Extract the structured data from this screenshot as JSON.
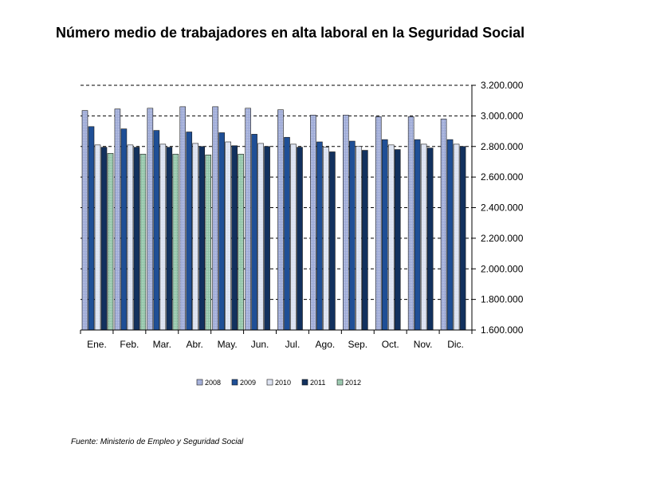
{
  "chart_data": {
    "type": "bar",
    "title": "Número medio de trabajadores en alta laboral en la Seguridad Social",
    "categories": [
      "Ene.",
      "Feb.",
      "Mar.",
      "Abr.",
      "May.",
      "Jun.",
      "Jul.",
      "Ago.",
      "Sep.",
      "Oct.",
      "Nov.",
      "Dic."
    ],
    "series": [
      {
        "name": "2008",
        "color": "#9ba8d6",
        "pattern": "dots",
        "values": [
          3035000,
          3045000,
          3050000,
          3060000,
          3060000,
          3050000,
          3040000,
          3005000,
          3005000,
          2995000,
          2995000,
          2980000
        ]
      },
      {
        "name": "2009",
        "color": "#1f4f96",
        "pattern": "solid",
        "values": [
          2930000,
          2915000,
          2905000,
          2895000,
          2890000,
          2880000,
          2860000,
          2830000,
          2835000,
          2845000,
          2845000,
          2845000
        ]
      },
      {
        "name": "2010",
        "color": "#d9e0f0",
        "pattern": "dots",
        "values": [
          2810000,
          2810000,
          2815000,
          2820000,
          2830000,
          2820000,
          2815000,
          2795000,
          2800000,
          2810000,
          2815000,
          2815000
        ]
      },
      {
        "name": "2011",
        "color": "#12315e",
        "pattern": "solid",
        "values": [
          2795000,
          2795000,
          2795000,
          2800000,
          2805000,
          2800000,
          2795000,
          2765000,
          2775000,
          2780000,
          2790000,
          2800000
        ]
      },
      {
        "name": "2012",
        "color": "#8fc3a6",
        "pattern": "dots",
        "values": [
          2755000,
          2750000,
          2750000,
          2745000,
          2750000,
          null,
          null,
          null,
          null,
          null,
          null,
          null
        ]
      }
    ],
    "y_ticks": [
      "1.600.000",
      "1.800.000",
      "2.000.000",
      "2.200.000",
      "2.400.000",
      "2.600.000",
      "2.800.000",
      "3.000.000",
      "3.200.000"
    ],
    "ylim": [
      1600000,
      3200000
    ],
    "y_axis_side": "right",
    "grid": "dashed horizontal",
    "legend_position": "bottom"
  },
  "source_note": "Fuente: Ministerio de Empleo y Seguridad Social"
}
